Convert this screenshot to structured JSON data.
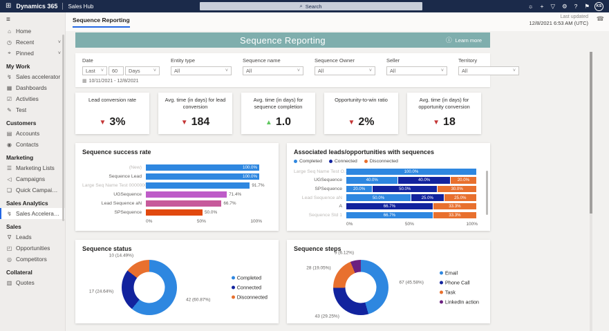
{
  "topbar": {
    "brand": "Dynamics 365",
    "app": "Sales Hub",
    "search_placeholder": "Search",
    "avatar_initials": "KS",
    "icons": [
      {
        "name": "lightbulb-icon",
        "glyph": "☼"
      },
      {
        "name": "add-icon",
        "glyph": "+"
      },
      {
        "name": "filter-icon",
        "glyph": "▽"
      },
      {
        "name": "settings-icon",
        "glyph": "⚙"
      },
      {
        "name": "help-icon",
        "glyph": "?"
      },
      {
        "name": "feedback-icon",
        "glyph": "⚑"
      }
    ]
  },
  "sidebar": {
    "sections": [
      {
        "header": "",
        "items": [
          {
            "label": "Home",
            "icon": "home-icon",
            "glyph": "⌂"
          },
          {
            "label": "Recent",
            "icon": "clock-icon",
            "glyph": "◷",
            "chevron": true
          },
          {
            "label": "Pinned",
            "icon": "pin-icon",
            "glyph": "⌖",
            "chevron": true
          }
        ]
      },
      {
        "header": "My Work",
        "items": [
          {
            "label": "Sales accelerator",
            "icon": "accelerator-icon",
            "glyph": "↯"
          },
          {
            "label": "Dashboards",
            "icon": "dashboard-icon",
            "glyph": "▦"
          },
          {
            "label": "Activities",
            "icon": "activities-icon",
            "glyph": "☑"
          },
          {
            "label": "Test",
            "icon": "test-icon",
            "glyph": "✎"
          }
        ]
      },
      {
        "header": "Customers",
        "items": [
          {
            "label": "Accounts",
            "icon": "building-icon",
            "glyph": "▤"
          },
          {
            "label": "Contacts",
            "icon": "person-icon",
            "glyph": "◉"
          }
        ]
      },
      {
        "header": "Marketing",
        "items": [
          {
            "label": "Marketing Lists",
            "icon": "list-icon",
            "glyph": "☰"
          },
          {
            "label": "Campaigns",
            "icon": "megaphone-icon",
            "glyph": "◁"
          },
          {
            "label": "Quick Campaigns",
            "icon": "quick-campaign-icon",
            "glyph": "❏"
          }
        ]
      },
      {
        "header": "Sales Analytics",
        "items": [
          {
            "label": "Sales Acceleration...",
            "icon": "acceleration-icon",
            "glyph": "↯",
            "selected": true
          }
        ]
      },
      {
        "header": "Sales",
        "items": [
          {
            "label": "Leads",
            "icon": "leads-icon",
            "glyph": "∇"
          },
          {
            "label": "Opportunities",
            "icon": "opportunity-icon",
            "glyph": "◰"
          },
          {
            "label": "Competitors",
            "icon": "competitors-icon",
            "glyph": "◎"
          }
        ]
      },
      {
        "header": "Collateral",
        "items": [
          {
            "label": "Quotes",
            "icon": "quotes-icon",
            "glyph": "▥"
          }
        ]
      }
    ]
  },
  "page": {
    "tab": "Sequence Reporting",
    "last_updated_label": "Last updated",
    "last_updated_value": "12/8/2021 6:53 AM (UTC)",
    "banner_title": "Sequence Reporting",
    "info_glyph": "ⓘ",
    "learn_more": "Learn more",
    "phone_glyph": "☎"
  },
  "filters": {
    "date": {
      "label": "Date",
      "segments": [
        "Last",
        "60",
        "Days"
      ],
      "calendar_glyph": "▦",
      "range": "10/11/2021 - 12/8/2021"
    },
    "dropdowns": [
      {
        "label": "Entity type",
        "value": "All"
      },
      {
        "label": "Sequence name",
        "value": "All"
      },
      {
        "label": "Sequence Owner",
        "value": "All"
      },
      {
        "label": "Seller",
        "value": "All"
      },
      {
        "label": "Territory",
        "value": "All"
      }
    ]
  },
  "kpis": [
    {
      "title": "Lead conversion rate",
      "direction": "down",
      "value": "3%"
    },
    {
      "title": "Avg. time (in days) for lead conversion",
      "direction": "down",
      "value": "184"
    },
    {
      "title": "Avg. time (in days) for sequence completion",
      "direction": "up",
      "value": "1.0"
    },
    {
      "title": "Opportunity-to-win ratio",
      "direction": "down",
      "value": "2%"
    },
    {
      "title": "Avg. time (in days) for opportunity conversion",
      "direction": "down",
      "value": "18"
    }
  ],
  "colors": {
    "up": "#5EC75E",
    "down": "#C43636",
    "accent": "#2266E3",
    "banner": "#7FAEAD",
    "topbar": "#1B2A4A"
  },
  "chart_data": [
    {
      "type": "bar",
      "title": "Sequence success rate",
      "categories": [
        "(New)",
        "Sequence Lead",
        "Large Seq Name Test 000000000000...",
        "UGSequence",
        "Lead Sequence aN",
        "SPSequence"
      ],
      "muted": [
        true,
        false,
        true,
        false,
        false,
        false
      ],
      "values": [
        100.0,
        100.0,
        91.7,
        71.4,
        66.7,
        50.0
      ],
      "labels": [
        "100.0%",
        "100.0%",
        "91.7%",
        "71.4%",
        "66.7%",
        "50.0%"
      ],
      "colors": [
        "#2E87E0",
        "#2E87E0",
        "#2E87E0",
        "#BE5CC8",
        "#C75A9B",
        "#E1490F"
      ],
      "xticks": [
        "0%",
        "50%",
        "100%"
      ],
      "xlim": [
        0,
        100
      ]
    },
    {
      "type": "stacked-bar",
      "title": "Associated leads/opportunities with sequences",
      "legend": [
        {
          "name": "Completed",
          "color": "#2E87E0"
        },
        {
          "name": "Connected",
          "color": "#12239E"
        },
        {
          "name": "Disconnected",
          "color": "#E8702E"
        }
      ],
      "categories": [
        "Large Seq Name Test O...",
        "UGSequence",
        "SPSequence",
        "Lead Sequence aN",
        "A",
        "Sequence Std 1"
      ],
      "muted": [
        true,
        false,
        false,
        true,
        false,
        true
      ],
      "series": [
        {
          "name": "Completed",
          "color": "#2E87E0",
          "values": [
            100.0,
            40.0,
            20.0,
            50.0,
            0,
            66.7
          ],
          "labels": [
            "100.0%",
            "40.0%",
            "20.0%",
            "50.0%",
            "",
            "66.7%"
          ]
        },
        {
          "name": "Connected",
          "color": "#12239E",
          "values": [
            0,
            40.0,
            50.0,
            25.0,
            66.7,
            0
          ],
          "labels": [
            "",
            "40.0%",
            "50.0%",
            "25.0%",
            "66.7%",
            ""
          ]
        },
        {
          "name": "Disconnected",
          "color": "#E8702E",
          "values": [
            0,
            20.0,
            30.0,
            25.0,
            33.3,
            33.3
          ],
          "labels": [
            "",
            "20.0%",
            "30.0%",
            "25.0%",
            "33.3%",
            "33.3%"
          ]
        }
      ],
      "xticks": [
        "0%",
        "50%",
        "100%"
      ],
      "xlim": [
        0,
        100
      ]
    },
    {
      "type": "donut",
      "title": "Sequence status",
      "slices": [
        {
          "label": "Completed",
          "value": 42,
          "callout": "42 (60.87%)",
          "color": "#2E87E0"
        },
        {
          "label": "Connected",
          "value": 17,
          "callout": "17 (24.64%)",
          "color": "#12239E"
        },
        {
          "label": "Disconnected",
          "value": 10,
          "callout": "10 (14.49%)",
          "color": "#E8702E"
        }
      ]
    },
    {
      "type": "donut",
      "title": "Sequence steps",
      "slices": [
        {
          "label": "Email",
          "value": 67,
          "callout": "67 (45.58%)",
          "color": "#2E87E0"
        },
        {
          "label": "Phone Call",
          "value": 43,
          "callout": "43 (29.25%)",
          "color": "#12239E"
        },
        {
          "label": "Task",
          "value": 28,
          "callout": "28 (19.05%)",
          "color": "#E8702E"
        },
        {
          "label": "LinkedIn action",
          "value": 9,
          "callout": "9 (6.12%)",
          "color": "#6B2080"
        }
      ]
    }
  ]
}
